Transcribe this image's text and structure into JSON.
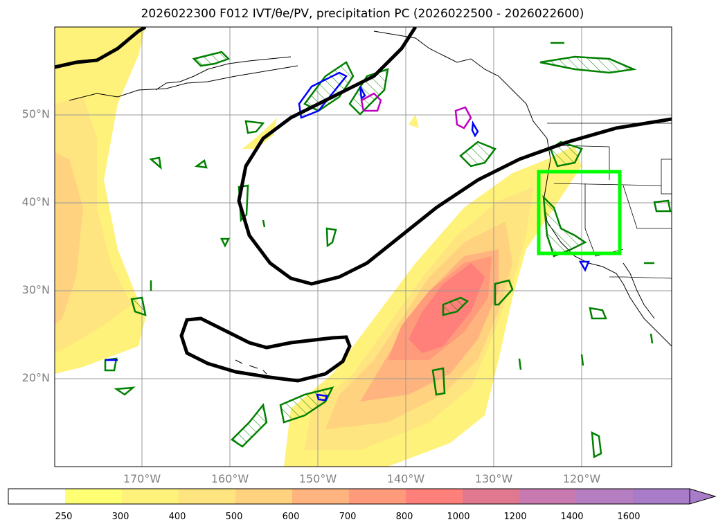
{
  "title": "2026022300 F012 IVT/θe/PV, precipitation PC (2026022500 - 2026022600)",
  "latitude_labels": [
    "50°N",
    "40°N",
    "30°N",
    "20°N"
  ],
  "longitude_labels": [
    "170°W",
    "160°W",
    "150°W",
    "140°W",
    "130°W",
    "120°W"
  ],
  "colorbar": {
    "levels": [
      "250",
      "300",
      "400",
      "500",
      "600",
      "700",
      "800",
      "1000",
      "1200",
      "1400",
      "1600"
    ],
    "colors": [
      "#ffffff",
      "#ffff73",
      "#fff27a",
      "#ffe57f",
      "#ffd27f",
      "#ffb47f",
      "#ff9a7a",
      "#ff807a",
      "#e07890",
      "#c87ab0",
      "#b47ec0",
      "#a87cc8"
    ],
    "extend": "max"
  },
  "colors": {
    "highlight_box": "#00ff00",
    "contour_black": "#000000",
    "contour_green": "#008000",
    "contour_blue": "#0000ff",
    "contour_magenta": "#c000c0"
  }
}
